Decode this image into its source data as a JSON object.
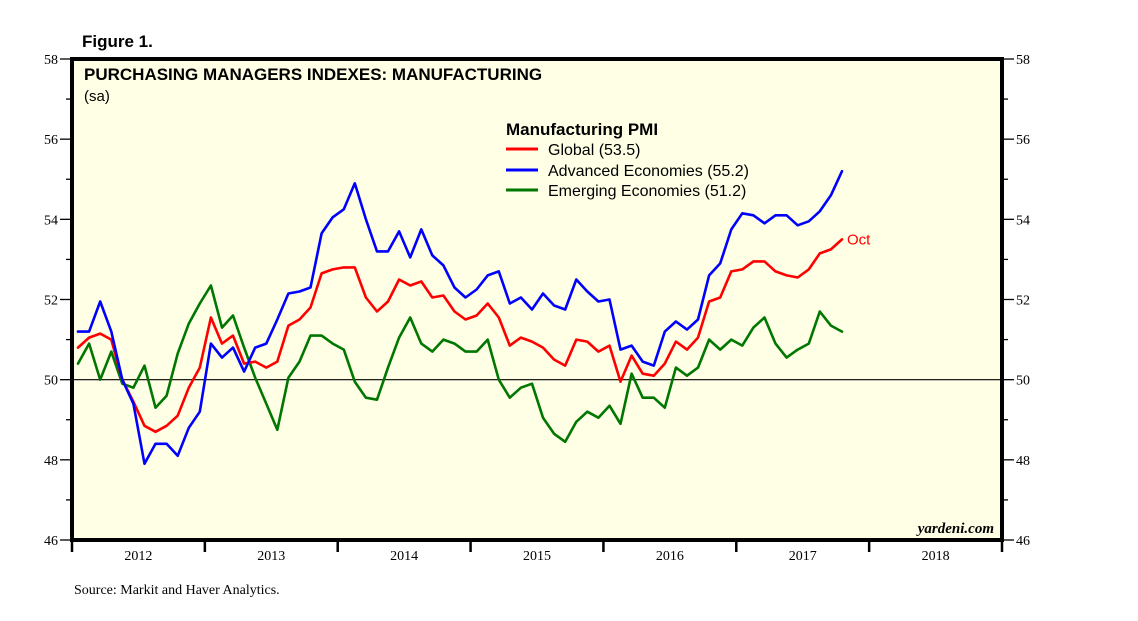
{
  "figure_label": "Figure 1.",
  "source": "Source: Markit and Haver Analytics.",
  "watermark": "yardeni.com",
  "colors": {
    "background": "#ffffe6",
    "global": "#ff0000",
    "advanced": "#0000ff",
    "emerging": "#007700"
  },
  "chart_data": {
    "type": "line",
    "title": "PURCHASING MANAGERS INDEXES: MANUFACTURING",
    "subtitle": "(sa)",
    "xlabel": "",
    "ylabel": "",
    "ylim": [
      46,
      58
    ],
    "yticks": [
      "46",
      "48",
      "50",
      "52",
      "54",
      "56",
      "58"
    ],
    "reference_line": 50,
    "x_start": "2012-01",
    "x_frequency": "monthly",
    "xlim_years": [
      2012,
      2019
    ],
    "xtick_labels": [
      "2012",
      "2013",
      "2014",
      "2015",
      "2016",
      "2017",
      "2018"
    ],
    "legend": {
      "title": "Manufacturing PMI",
      "placement": "top-center",
      "entries": [
        "Global (53.5)",
        "Advanced Economies (55.2)",
        "Emerging Economies (51.2)"
      ]
    },
    "annotations": [
      {
        "text": "Oct",
        "series": "Global"
      }
    ],
    "grid": false,
    "series": [
      {
        "name": "Global",
        "color_key": "global",
        "values": [
          50.8,
          51.05,
          51.15,
          51.0,
          50.0,
          49.45,
          48.85,
          48.7,
          48.85,
          49.1,
          49.8,
          50.3,
          51.55,
          50.9,
          51.1,
          50.4,
          50.45,
          50.3,
          50.45,
          51.35,
          51.5,
          51.8,
          52.65,
          52.75,
          52.8,
          52.8,
          52.05,
          51.7,
          51.95,
          52.5,
          52.35,
          52.45,
          52.05,
          52.1,
          51.7,
          51.5,
          51.6,
          51.9,
          51.55,
          50.85,
          51.05,
          50.95,
          50.8,
          50.5,
          50.35,
          51.0,
          50.95,
          50.7,
          50.85,
          49.95,
          50.6,
          50.15,
          50.1,
          50.4,
          50.95,
          50.75,
          51.05,
          51.95,
          52.05,
          52.7,
          52.75,
          52.95,
          52.95,
          52.7,
          52.6,
          52.55,
          52.75,
          53.15,
          53.25,
          53.5
        ]
      },
      {
        "name": "Advanced Economies",
        "color_key": "advanced",
        "values": [
          51.2,
          51.2,
          51.95,
          51.2,
          50.0,
          49.4,
          47.9,
          48.4,
          48.4,
          48.1,
          48.8,
          49.2,
          50.9,
          50.55,
          50.8,
          50.2,
          50.8,
          50.9,
          51.5,
          52.15,
          52.2,
          52.3,
          53.65,
          54.05,
          54.25,
          54.9,
          54.0,
          53.2,
          53.2,
          53.7,
          53.05,
          53.75,
          53.1,
          52.85,
          52.3,
          52.05,
          52.25,
          52.6,
          52.7,
          51.9,
          52.05,
          51.75,
          52.15,
          51.85,
          51.75,
          52.5,
          52.2,
          51.95,
          52.0,
          50.75,
          50.85,
          50.45,
          50.35,
          51.2,
          51.45,
          51.25,
          51.5,
          52.6,
          52.9,
          53.75,
          54.15,
          54.1,
          53.9,
          54.1,
          54.1,
          53.85,
          53.95,
          54.2,
          54.6,
          55.2
        ]
      },
      {
        "name": "Emerging Economies",
        "color_key": "emerging",
        "values": [
          50.4,
          50.9,
          50.0,
          50.7,
          49.9,
          49.8,
          50.35,
          49.3,
          49.6,
          50.65,
          51.4,
          51.9,
          52.35,
          51.3,
          51.6,
          50.8,
          50.05,
          49.4,
          48.75,
          50.05,
          50.45,
          51.1,
          51.1,
          50.9,
          50.75,
          49.95,
          49.55,
          49.5,
          50.3,
          51.05,
          51.55,
          50.9,
          50.7,
          51.0,
          50.9,
          50.7,
          50.7,
          51.0,
          50.0,
          49.55,
          49.8,
          49.9,
          49.05,
          48.65,
          48.45,
          48.95,
          49.2,
          49.05,
          49.35,
          48.9,
          50.15,
          49.55,
          49.55,
          49.3,
          50.3,
          50.1,
          50.3,
          51.0,
          50.75,
          51.0,
          50.85,
          51.3,
          51.55,
          50.9,
          50.55,
          50.75,
          50.9,
          51.7,
          51.35,
          51.2
        ]
      }
    ]
  }
}
